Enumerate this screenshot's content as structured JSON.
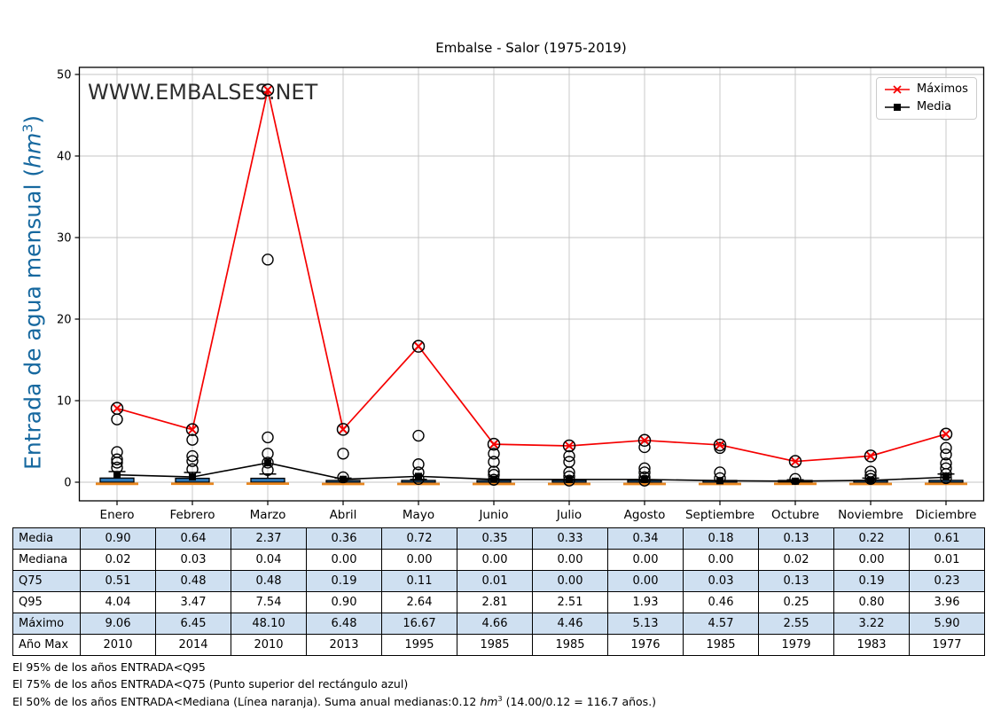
{
  "title": "Embalse - Salor (1975-2019)",
  "watermark": "WWW.EMBALSES.NET",
  "ylabel": {
    "pre": "Entrada de agua mensual (",
    "unit": "hm",
    "sup": "3",
    "post": ")"
  },
  "legend": {
    "maximos": "Máximos",
    "media": "Media"
  },
  "colors": {
    "maximos_red": "#f50000",
    "media_black": "#000000",
    "box_blue": "#2f77b5",
    "median_orange": "#e8861f",
    "watermark_blue": "#6fa3c9",
    "ylabel_blue": "#16689f",
    "table_row_blue": "#cfe0f1",
    "grid_gray": "#c4c4c4"
  },
  "chart_data": {
    "type": "line+boxplot",
    "title": "Embalse - Salor (1975-2019)",
    "ylabel": "Entrada de agua mensual (hm3)",
    "categories": [
      "Enero",
      "Febrero",
      "Marzo",
      "Abril",
      "Mayo",
      "Junio",
      "Julio",
      "Agosto",
      "Septiembre",
      "Octubre",
      "Noviembre",
      "Diciembre"
    ],
    "yticks": [
      0,
      10,
      20,
      30,
      40,
      50
    ],
    "ylim": [
      -2.3,
      50.9
    ],
    "grid": true,
    "legend_position": "upper-right",
    "series": [
      {
        "name": "Máximos",
        "color": "#f50000",
        "marker": "x-circle",
        "values": [
          9.06,
          6.45,
          48.1,
          6.48,
          16.67,
          4.66,
          4.46,
          5.13,
          4.57,
          2.55,
          3.22,
          5.9
        ]
      },
      {
        "name": "Media",
        "color": "#000000",
        "marker": "square",
        "values": [
          0.9,
          0.64,
          2.37,
          0.36,
          0.72,
          0.35,
          0.33,
          0.34,
          0.18,
          0.13,
          0.22,
          0.61
        ]
      }
    ],
    "boxplot": {
      "mediana": [
        0.02,
        0.03,
        0.04,
        0.0,
        0.0,
        0.0,
        0.0,
        0.0,
        0.0,
        0.02,
        0.0,
        0.01
      ],
      "q75": [
        0.51,
        0.48,
        0.48,
        0.19,
        0.11,
        0.01,
        0.0,
        0.0,
        0.03,
        0.13,
        0.19,
        0.23
      ],
      "q95": [
        4.04,
        3.47,
        7.54,
        0.9,
        2.64,
        2.81,
        2.51,
        1.93,
        0.46,
        0.25,
        0.8,
        3.96
      ],
      "whisker_top": [
        1.3,
        1.2,
        1.0,
        0.5,
        0.35,
        0.05,
        0.02,
        0.02,
        0.12,
        0.3,
        0.5,
        1.0
      ],
      "outliers": [
        [
          7.7,
          3.7,
          2.8,
          2.4,
          1.8
        ],
        [
          5.2,
          3.2,
          2.6,
          1.6
        ],
        [
          27.3,
          5.5,
          3.5,
          2.4,
          1.5
        ],
        [
          3.5,
          0.6
        ],
        [
          5.7,
          2.2,
          1.2,
          0.4
        ],
        [
          3.5,
          2.5,
          1.3,
          0.9,
          0.3
        ],
        [
          3.2,
          2.5,
          1.2,
          0.7,
          0.2
        ],
        [
          4.3,
          1.7,
          1.2,
          0.6,
          0.2
        ],
        [
          4.2,
          1.2,
          0.5
        ],
        [
          0.4
        ],
        [
          1.3,
          0.8,
          0.4
        ],
        [
          4.2,
          3.4,
          2.3,
          1.7,
          1.0,
          0.5
        ]
      ]
    }
  },
  "table": {
    "rows": [
      {
        "label": "Media",
        "shaded": true,
        "values": [
          "0.90",
          "0.64",
          "2.37",
          "0.36",
          "0.72",
          "0.35",
          "0.33",
          "0.34",
          "0.18",
          "0.13",
          "0.22",
          "0.61"
        ]
      },
      {
        "label": "Mediana",
        "shaded": false,
        "values": [
          "0.02",
          "0.03",
          "0.04",
          "0.00",
          "0.00",
          "0.00",
          "0.00",
          "0.00",
          "0.00",
          "0.02",
          "0.00",
          "0.01"
        ]
      },
      {
        "label": "Q75",
        "shaded": true,
        "values": [
          "0.51",
          "0.48",
          "0.48",
          "0.19",
          "0.11",
          "0.01",
          "0.00",
          "0.00",
          "0.03",
          "0.13",
          "0.19",
          "0.23"
        ]
      },
      {
        "label": "Q95",
        "shaded": false,
        "values": [
          "4.04",
          "3.47",
          "7.54",
          "0.90",
          "2.64",
          "2.81",
          "2.51",
          "1.93",
          "0.46",
          "0.25",
          "0.80",
          "3.96"
        ]
      },
      {
        "label": "Máximo",
        "shaded": true,
        "values": [
          "9.06",
          "6.45",
          "48.10",
          "6.48",
          "16.67",
          "4.66",
          "4.46",
          "5.13",
          "4.57",
          "2.55",
          "3.22",
          "5.90"
        ]
      },
      {
        "label": "Año Max",
        "shaded": false,
        "values": [
          "2010",
          "2014",
          "2010",
          "2013",
          "1995",
          "1985",
          "1985",
          "1976",
          "1985",
          "1979",
          "1983",
          "1977"
        ]
      }
    ]
  },
  "footnotes": {
    "line1": "El 95% de los años ENTRADA<Q95",
    "line2": "El 75% de los años ENTRADA<Q75 (Punto superior del rectángulo azul)",
    "line3_pre": "El 50% de los años ENTRADA<Mediana (Línea naranja). Suma anual medianas:0.12 ",
    "line3_unit": "hm",
    "line3_sup": "3",
    "line3_post": " (14.00/0.12 = 116.7 años.)"
  }
}
